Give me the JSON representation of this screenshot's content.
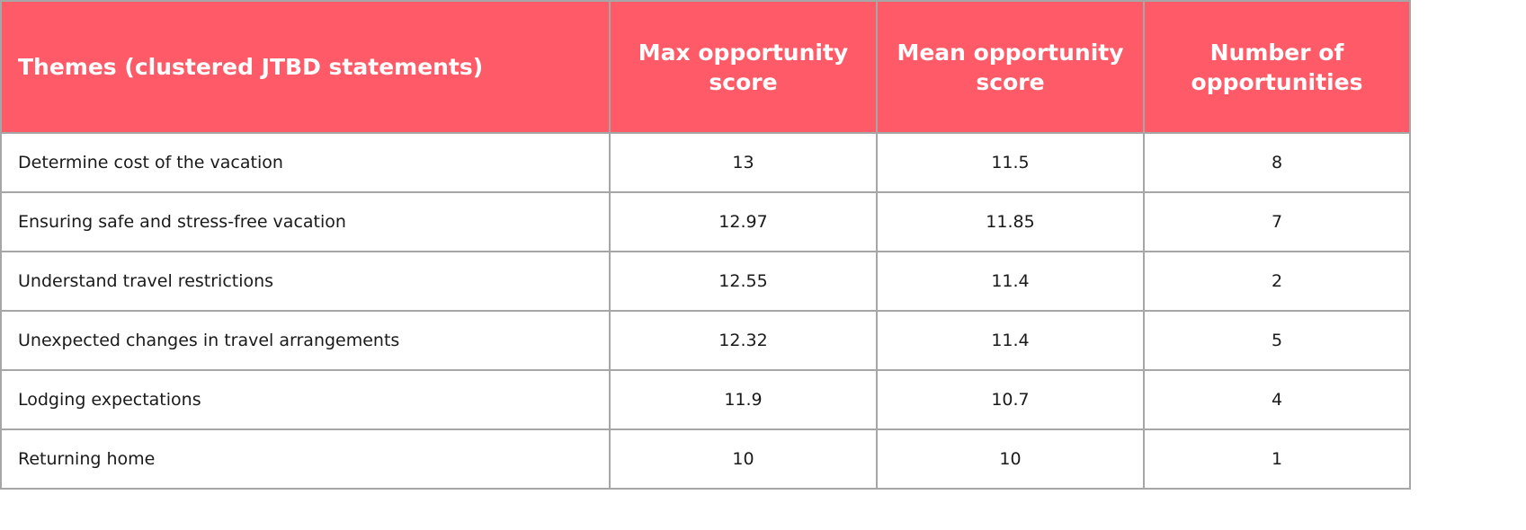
{
  "table": {
    "headers": [
      "Themes (clustered JTBD statements)",
      "Max opportunity score",
      "Mean opportunity score",
      "Number of opportunities"
    ],
    "rows": [
      [
        "Determine cost of the vacation",
        "13",
        "11.5",
        "8"
      ],
      [
        "Ensuring safe and stress-free vacation",
        "12.97",
        "11.85",
        "7"
      ],
      [
        "Understand travel restrictions",
        "12.55",
        "11.4",
        "2"
      ],
      [
        "Unexpected changes in travel arrangements",
        "12.32",
        "11.4",
        "5"
      ],
      [
        "Lodging expectations",
        "11.9",
        "10.7",
        "4"
      ],
      [
        "Returning home",
        "10",
        "10",
        "1"
      ]
    ]
  },
  "colors": {
    "header_background": "#ff5a67",
    "header_text": "#ffffff",
    "border": "#a6a6a6"
  }
}
